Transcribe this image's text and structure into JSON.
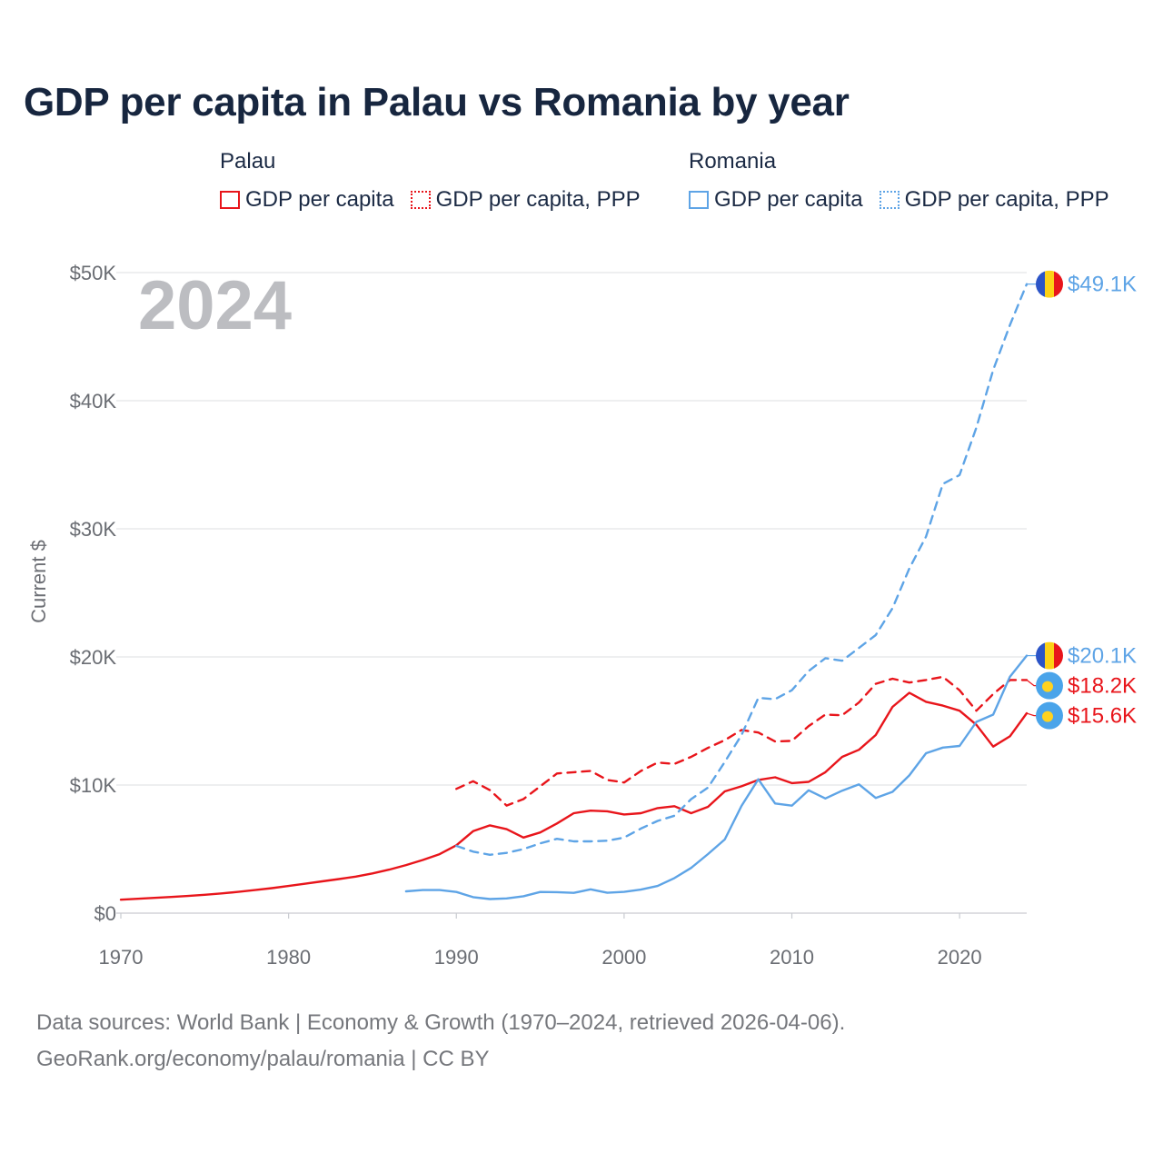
{
  "title": "GDP per capita in Palau vs Romania by year",
  "legend": {
    "groups": [
      {
        "title": "Palau",
        "items": [
          {
            "label": "GDP per capita",
            "color": "#e8151b",
            "style": "solid"
          },
          {
            "label": "GDP per capita, PPP",
            "color": "#e8151b",
            "style": "dotted"
          }
        ]
      },
      {
        "title": "Romania",
        "items": [
          {
            "label": "GDP per capita",
            "color": "#5ea4e6",
            "style": "solid"
          },
          {
            "label": "GDP per capita, PPP",
            "color": "#5ea4e6",
            "style": "dotted"
          }
        ]
      }
    ]
  },
  "year_watermark": "2024",
  "source": {
    "line1": "Data sources: World Bank | Economy & Growth (1970–2024, retrieved 2026-04-06).",
    "line2": "GeoRank.org/economy/palau/romania | CC BY"
  },
  "chart_data": {
    "type": "line",
    "title": "GDP per capita in Palau vs Romania by year",
    "xlabel": "",
    "ylabel": "Current $",
    "xlim": [
      1970,
      2024
    ],
    "ylim": [
      0,
      50000
    ],
    "x_ticks": [
      1970,
      1980,
      1990,
      2000,
      2010,
      2020
    ],
    "x_tick_labels": [
      "1970",
      "1980",
      "1990",
      "2000",
      "2010",
      "2020"
    ],
    "y_ticks": [
      0,
      10000,
      20000,
      30000,
      40000,
      50000
    ],
    "y_tick_labels": [
      "$0",
      "$10K",
      "$20K",
      "$30K",
      "$40K",
      "$50K"
    ],
    "grid": true,
    "legend_position": "top",
    "series": [
      {
        "name": "Palau GDP per capita",
        "color": "#e8151b",
        "dash": "solid",
        "end_label": "$15.6K",
        "flag": "palau",
        "x": [
          1970,
          1971,
          1972,
          1973,
          1974,
          1975,
          1976,
          1977,
          1978,
          1979,
          1980,
          1981,
          1982,
          1983,
          1984,
          1985,
          1986,
          1987,
          1988,
          1989,
          1990,
          1991,
          1992,
          1993,
          1994,
          1995,
          1996,
          1997,
          1998,
          1999,
          2000,
          2001,
          2002,
          2003,
          2004,
          2005,
          2006,
          2007,
          2008,
          2009,
          2010,
          2011,
          2012,
          2013,
          2014,
          2015,
          2016,
          2017,
          2018,
          2019,
          2020,
          2021,
          2022,
          2023,
          2024
        ],
        "values": [
          1050,
          1120,
          1190,
          1260,
          1340,
          1430,
          1540,
          1660,
          1800,
          1950,
          2120,
          2300,
          2480,
          2660,
          2850,
          3100,
          3400,
          3750,
          4150,
          4600,
          5300,
          6400,
          6850,
          6550,
          5900,
          6300,
          7000,
          7800,
          8000,
          7950,
          7700,
          7800,
          8200,
          8350,
          7800,
          8300,
          9500,
          9900,
          10400,
          10600,
          10150,
          10250,
          11000,
          12200,
          12750,
          13900,
          16100,
          17200,
          16500,
          16200,
          15800,
          14700,
          13000,
          13800,
          15600
        ]
      },
      {
        "name": "Palau GDP per capita, PPP",
        "color": "#e8151b",
        "dash": "dashed",
        "end_label": "$18.2K",
        "flag": "palau",
        "x": [
          1990,
          1991,
          1992,
          1993,
          1994,
          1995,
          1996,
          1997,
          1998,
          1999,
          2000,
          2001,
          2002,
          2003,
          2004,
          2005,
          2006,
          2007,
          2008,
          2009,
          2010,
          2011,
          2012,
          2013,
          2014,
          2015,
          2016,
          2017,
          2018,
          2019,
          2020,
          2021,
          2022,
          2023,
          2024
        ],
        "values": [
          9700,
          10300,
          9600,
          8400,
          8900,
          9900,
          10900,
          11000,
          11100,
          10400,
          10200,
          11100,
          11750,
          11650,
          12200,
          12900,
          13500,
          14300,
          14100,
          13400,
          13450,
          14600,
          15500,
          15450,
          16450,
          17900,
          18300,
          18000,
          18200,
          18450,
          17400,
          15800,
          17100,
          18200,
          18200
        ]
      },
      {
        "name": "Romania GDP per capita",
        "color": "#5ea4e6",
        "dash": "solid",
        "end_label": "$20.1K",
        "flag": "romania",
        "x": [
          1987,
          1988,
          1989,
          1990,
          1991,
          1992,
          1993,
          1994,
          1995,
          1996,
          1997,
          1998,
          1999,
          2000,
          2001,
          2002,
          2003,
          2004,
          2005,
          2006,
          2007,
          2008,
          2009,
          2010,
          2011,
          2012,
          2013,
          2014,
          2015,
          2016,
          2017,
          2018,
          2019,
          2020,
          2021,
          2022,
          2023,
          2024
        ],
        "values": [
          1700,
          1800,
          1800,
          1650,
          1250,
          1100,
          1150,
          1320,
          1650,
          1640,
          1580,
          1860,
          1590,
          1660,
          1840,
          2120,
          2740,
          3530,
          4610,
          5750,
          8370,
          10450,
          8560,
          8390,
          9590,
          8950,
          9560,
          10050,
          8990,
          9470,
          10750,
          12480,
          12920,
          13050,
          14930,
          15500,
          18450,
          20100
        ]
      },
      {
        "name": "Romania GDP per capita, PPP",
        "color": "#5ea4e6",
        "dash": "dashed",
        "end_label": "$49.1K",
        "flag": "romania",
        "x": [
          1990,
          1991,
          1992,
          1993,
          1994,
          1995,
          1996,
          1997,
          1998,
          1999,
          2000,
          2001,
          2002,
          2003,
          2004,
          2005,
          2006,
          2007,
          2008,
          2009,
          2010,
          2011,
          2012,
          2013,
          2014,
          2015,
          2016,
          2017,
          2018,
          2019,
          2020,
          2021,
          2022,
          2023,
          2024
        ],
        "values": [
          5250,
          4800,
          4550,
          4700,
          5000,
          5450,
          5800,
          5600,
          5600,
          5650,
          5900,
          6600,
          7200,
          7600,
          8900,
          9800,
          11800,
          13900,
          16800,
          16700,
          17400,
          18900,
          19900,
          19700,
          20700,
          21700,
          23800,
          26900,
          29400,
          33500,
          34200,
          37900,
          42400,
          45900,
          49100
        ]
      }
    ]
  }
}
